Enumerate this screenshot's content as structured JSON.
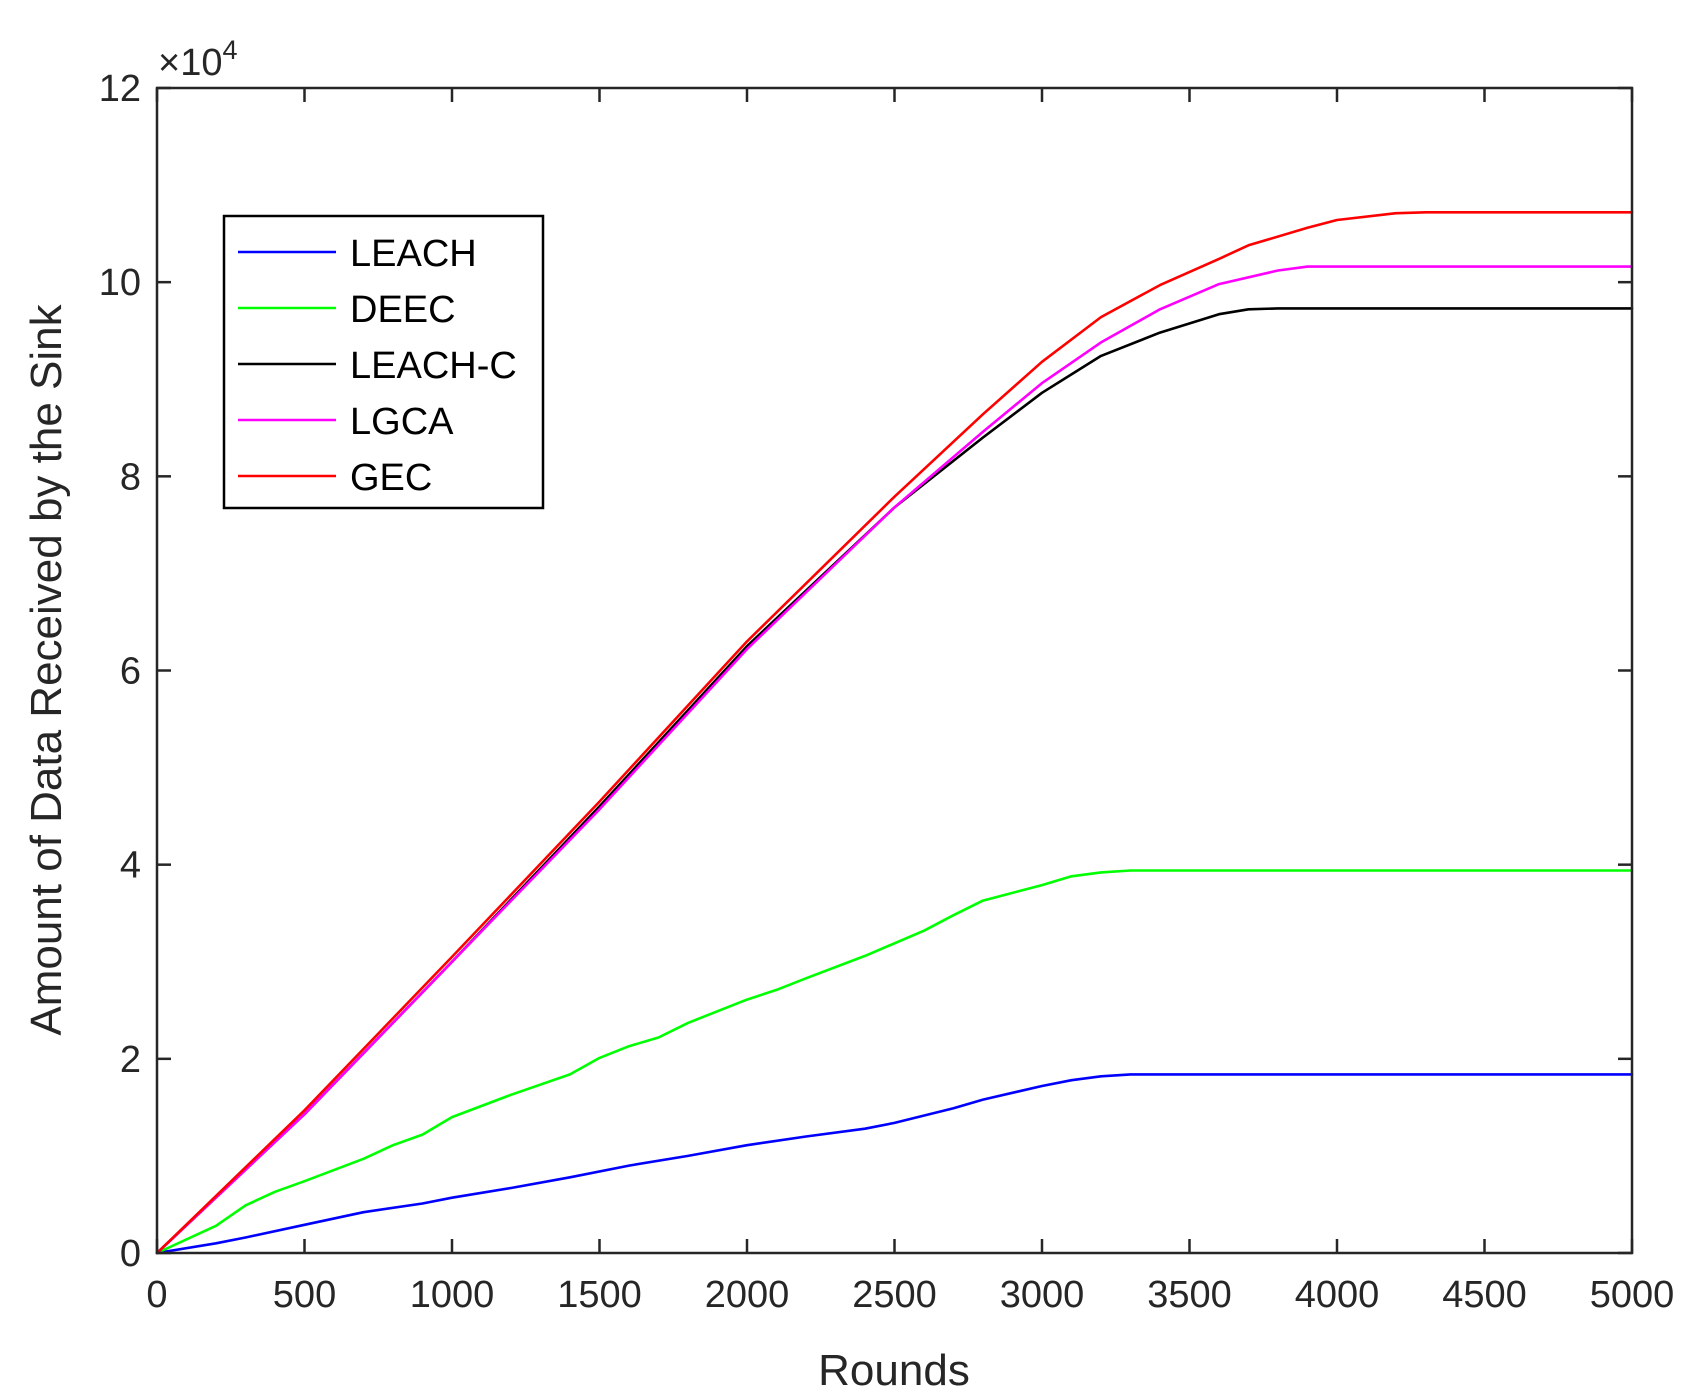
{
  "chart_data": {
    "type": "line",
    "title": "",
    "xlabel": "Rounds",
    "ylabel": "Amount of Data Received by the Sink",
    "xlim": [
      0,
      5000
    ],
    "ylim": [
      0,
      120000
    ],
    "x_ticks": [
      0,
      500,
      1000,
      1500,
      2000,
      2500,
      3000,
      3500,
      4000,
      4500,
      5000
    ],
    "y_ticks": [
      0,
      20000,
      40000,
      60000,
      80000,
      100000,
      120000
    ],
    "y_tick_labels": [
      "0",
      "2",
      "4",
      "6",
      "8",
      "10",
      "12"
    ],
    "y_exponent_label": "×10",
    "y_exponent_power": "4",
    "grid": false,
    "legend_position": "top-left",
    "series": [
      {
        "name": "LEACH",
        "color": "#0000ff",
        "points": [
          [
            0,
            0
          ],
          [
            200,
            1000
          ],
          [
            300,
            1600
          ],
          [
            500,
            2900
          ],
          [
            700,
            4200
          ],
          [
            900,
            5100
          ],
          [
            1000,
            5700
          ],
          [
            1200,
            6700
          ],
          [
            1400,
            7800
          ],
          [
            1600,
            9000
          ],
          [
            1800,
            10000
          ],
          [
            2000,
            11100
          ],
          [
            2200,
            12000
          ],
          [
            2400,
            12800
          ],
          [
            2500,
            13400
          ],
          [
            2700,
            14900
          ],
          [
            2800,
            15800
          ],
          [
            3000,
            17200
          ],
          [
            3100,
            17800
          ],
          [
            3200,
            18200
          ],
          [
            3300,
            18400
          ],
          [
            3500,
            18400
          ],
          [
            4000,
            18400
          ],
          [
            4500,
            18400
          ],
          [
            5000,
            18400
          ]
        ]
      },
      {
        "name": "DEEC",
        "color": "#00ff00",
        "points": [
          [
            0,
            0
          ],
          [
            200,
            2800
          ],
          [
            300,
            4900
          ],
          [
            400,
            6300
          ],
          [
            500,
            7400
          ],
          [
            700,
            9700
          ],
          [
            800,
            11100
          ],
          [
            900,
            12200
          ],
          [
            1000,
            14000
          ],
          [
            1200,
            16300
          ],
          [
            1400,
            18400
          ],
          [
            1500,
            20100
          ],
          [
            1600,
            21300
          ],
          [
            1700,
            22200
          ],
          [
            1800,
            23700
          ],
          [
            2000,
            26100
          ],
          [
            2100,
            27100
          ],
          [
            2200,
            28300
          ],
          [
            2400,
            30600
          ],
          [
            2600,
            33200
          ],
          [
            2700,
            34800
          ],
          [
            2800,
            36300
          ],
          [
            3000,
            37900
          ],
          [
            3100,
            38800
          ],
          [
            3200,
            39200
          ],
          [
            3300,
            39400
          ],
          [
            3500,
            39400
          ],
          [
            4000,
            39400
          ],
          [
            4500,
            39400
          ],
          [
            5000,
            39400
          ]
        ]
      },
      {
        "name": "LEACH-C",
        "color": "#000000",
        "points": [
          [
            0,
            0
          ],
          [
            500,
            14300
          ],
          [
            1000,
            30000
          ],
          [
            1500,
            46000
          ],
          [
            2000,
            62500
          ],
          [
            2500,
            76800
          ],
          [
            2800,
            84000
          ],
          [
            3000,
            88600
          ],
          [
            3200,
            92400
          ],
          [
            3400,
            94800
          ],
          [
            3600,
            96700
          ],
          [
            3700,
            97200
          ],
          [
            3800,
            97300
          ],
          [
            4000,
            97300
          ],
          [
            4500,
            97300
          ],
          [
            5000,
            97300
          ]
        ]
      },
      {
        "name": "LGCA",
        "color": "#ff00ff",
        "points": [
          [
            0,
            0
          ],
          [
            500,
            14300
          ],
          [
            1000,
            30000
          ],
          [
            1500,
            45700
          ],
          [
            2000,
            62200
          ],
          [
            2500,
            76800
          ],
          [
            2800,
            84600
          ],
          [
            3000,
            89600
          ],
          [
            3200,
            93800
          ],
          [
            3400,
            97200
          ],
          [
            3600,
            99800
          ],
          [
            3800,
            101200
          ],
          [
            3900,
            101600
          ],
          [
            4000,
            101600
          ],
          [
            4500,
            101600
          ],
          [
            5000,
            101600
          ]
        ]
      },
      {
        "name": "GEC",
        "color": "#ff0000",
        "points": [
          [
            0,
            0
          ],
          [
            500,
            14700
          ],
          [
            1000,
            30500
          ],
          [
            1500,
            46500
          ],
          [
            2000,
            63000
          ],
          [
            2500,
            77900
          ],
          [
            2800,
            86400
          ],
          [
            3000,
            91800
          ],
          [
            3200,
            96400
          ],
          [
            3400,
            99700
          ],
          [
            3600,
            102400
          ],
          [
            3700,
            103800
          ],
          [
            3900,
            105600
          ],
          [
            4000,
            106400
          ],
          [
            4200,
            107100
          ],
          [
            4300,
            107200
          ],
          [
            4500,
            107200
          ],
          [
            5000,
            107200
          ]
        ]
      }
    ]
  }
}
